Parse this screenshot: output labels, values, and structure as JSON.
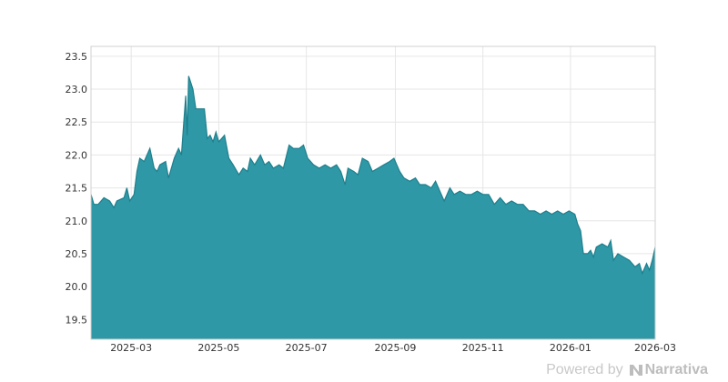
{
  "chart_data": {
    "type": "area",
    "title": "",
    "xlabel": "",
    "ylabel": "",
    "ylim": [
      19.2,
      23.65
    ],
    "xlim": [
      "2025-02-01",
      "2026-03-01"
    ],
    "grid": true,
    "colors": {
      "fill": "#2e98a6",
      "line": "#1f7f8c"
    },
    "y_ticks": [
      19.5,
      20.0,
      20.5,
      21.0,
      21.5,
      22.0,
      22.5,
      23.0,
      23.5
    ],
    "y_tick_labels": [
      "19.5",
      "20.0",
      "20.5",
      "21.0",
      "21.5",
      "22.0",
      "22.5",
      "23.0",
      "23.5"
    ],
    "x_ticks": [
      "2025-03-01",
      "2025-05-01",
      "2025-07-01",
      "2025-09-01",
      "2025-11-01",
      "2026-01-01",
      "2026-03-01"
    ],
    "x_tick_labels": [
      "2025-03",
      "2025-05",
      "2025-07",
      "2025-09",
      "2025-11",
      "2026-01",
      "2026-03"
    ],
    "series": [
      {
        "points": [
          [
            "2025-02-01",
            21.4
          ],
          [
            "2025-02-03",
            21.25
          ],
          [
            "2025-02-06",
            21.25
          ],
          [
            "2025-02-10",
            21.35
          ],
          [
            "2025-02-14",
            21.3
          ],
          [
            "2025-02-17",
            21.2
          ],
          [
            "2025-02-19",
            21.3
          ],
          [
            "2025-02-24",
            21.35
          ],
          [
            "2025-02-26",
            21.5
          ],
          [
            "2025-02-28",
            21.3
          ],
          [
            "2025-03-03",
            21.4
          ],
          [
            "2025-03-05",
            21.75
          ],
          [
            "2025-03-07",
            21.95
          ],
          [
            "2025-03-10",
            21.9
          ],
          [
            "2025-03-14",
            22.1
          ],
          [
            "2025-03-17",
            21.8
          ],
          [
            "2025-03-19",
            21.75
          ],
          [
            "2025-03-21",
            21.85
          ],
          [
            "2025-03-25",
            21.9
          ],
          [
            "2025-03-27",
            21.65
          ],
          [
            "2025-03-31",
            21.95
          ],
          [
            "2025-04-03",
            22.1
          ],
          [
            "2025-04-05",
            22.0
          ],
          [
            "2025-04-07",
            22.6
          ],
          [
            "2025-04-08",
            22.9
          ],
          [
            "2025-04-09",
            22.3
          ],
          [
            "2025-04-10",
            23.2
          ],
          [
            "2025-04-13",
            23.0
          ],
          [
            "2025-04-15",
            22.7
          ],
          [
            "2025-04-21",
            22.7
          ],
          [
            "2025-04-23",
            22.25
          ],
          [
            "2025-04-25",
            22.3
          ],
          [
            "2025-04-27",
            22.2
          ],
          [
            "2025-04-29",
            22.35
          ],
          [
            "2025-05-01",
            22.2
          ],
          [
            "2025-05-05",
            22.3
          ],
          [
            "2025-05-08",
            21.95
          ],
          [
            "2025-05-11",
            21.85
          ],
          [
            "2025-05-15",
            21.7
          ],
          [
            "2025-05-18",
            21.8
          ],
          [
            "2025-05-21",
            21.75
          ],
          [
            "2025-05-23",
            21.95
          ],
          [
            "2025-05-26",
            21.85
          ],
          [
            "2025-05-30",
            22.0
          ],
          [
            "2025-06-02",
            21.85
          ],
          [
            "2025-06-05",
            21.9
          ],
          [
            "2025-06-08",
            21.8
          ],
          [
            "2025-06-12",
            21.85
          ],
          [
            "2025-06-15",
            21.8
          ],
          [
            "2025-06-19",
            22.15
          ],
          [
            "2025-06-22",
            22.1
          ],
          [
            "2025-06-26",
            22.1
          ],
          [
            "2025-06-29",
            22.15
          ],
          [
            "2025-07-02",
            21.95
          ],
          [
            "2025-07-06",
            21.85
          ],
          [
            "2025-07-10",
            21.8
          ],
          [
            "2025-07-14",
            21.85
          ],
          [
            "2025-07-18",
            21.8
          ],
          [
            "2025-07-22",
            21.85
          ],
          [
            "2025-07-25",
            21.75
          ],
          [
            "2025-07-28",
            21.55
          ],
          [
            "2025-07-30",
            21.8
          ],
          [
            "2025-08-03",
            21.75
          ],
          [
            "2025-08-06",
            21.7
          ],
          [
            "2025-08-09",
            21.95
          ],
          [
            "2025-08-13",
            21.9
          ],
          [
            "2025-08-16",
            21.75
          ],
          [
            "2025-08-20",
            21.8
          ],
          [
            "2025-08-24",
            21.85
          ],
          [
            "2025-08-28",
            21.9
          ],
          [
            "2025-08-31",
            21.95
          ],
          [
            "2025-09-04",
            21.75
          ],
          [
            "2025-09-07",
            21.65
          ],
          [
            "2025-09-11",
            21.6
          ],
          [
            "2025-09-15",
            21.65
          ],
          [
            "2025-09-18",
            21.55
          ],
          [
            "2025-09-22",
            21.55
          ],
          [
            "2025-09-26",
            21.5
          ],
          [
            "2025-09-29",
            21.6
          ],
          [
            "2025-10-02",
            21.45
          ],
          [
            "2025-10-05",
            21.3
          ],
          [
            "2025-10-09",
            21.5
          ],
          [
            "2025-10-12",
            21.4
          ],
          [
            "2025-10-16",
            21.45
          ],
          [
            "2025-10-20",
            21.4
          ],
          [
            "2025-10-24",
            21.4
          ],
          [
            "2025-10-28",
            21.45
          ],
          [
            "2025-11-01",
            21.4
          ],
          [
            "2025-11-05",
            21.4
          ],
          [
            "2025-11-09",
            21.25
          ],
          [
            "2025-11-13",
            21.35
          ],
          [
            "2025-11-17",
            21.25
          ],
          [
            "2025-11-21",
            21.3
          ],
          [
            "2025-11-25",
            21.25
          ],
          [
            "2025-11-29",
            21.25
          ],
          [
            "2025-12-03",
            21.15
          ],
          [
            "2025-12-07",
            21.15
          ],
          [
            "2025-12-11",
            21.1
          ],
          [
            "2025-12-15",
            21.15
          ],
          [
            "2025-12-19",
            21.1
          ],
          [
            "2025-12-23",
            21.15
          ],
          [
            "2025-12-27",
            21.1
          ],
          [
            "2025-12-31",
            21.15
          ],
          [
            "2026-01-04",
            21.1
          ],
          [
            "2026-01-06",
            20.95
          ],
          [
            "2026-01-08",
            20.85
          ],
          [
            "2026-01-10",
            20.5
          ],
          [
            "2026-01-13",
            20.5
          ],
          [
            "2026-01-15",
            20.55
          ],
          [
            "2026-01-17",
            20.45
          ],
          [
            "2026-01-19",
            20.6
          ],
          [
            "2026-01-23",
            20.65
          ],
          [
            "2026-01-27",
            20.6
          ],
          [
            "2026-01-29",
            20.7
          ],
          [
            "2026-01-31",
            20.4
          ],
          [
            "2026-02-03",
            20.5
          ],
          [
            "2026-02-07",
            20.45
          ],
          [
            "2026-02-11",
            20.4
          ],
          [
            "2026-02-15",
            20.3
          ],
          [
            "2026-02-18",
            20.35
          ],
          [
            "2026-02-20",
            20.2
          ],
          [
            "2026-02-23",
            20.35
          ],
          [
            "2026-02-25",
            20.25
          ],
          [
            "2026-02-27",
            20.4
          ],
          [
            "2026-03-01",
            20.6
          ]
        ]
      }
    ]
  },
  "watermark": {
    "prefix": "Powered by",
    "brand": "Narrativa",
    "icon": "narrativa-logo-icon"
  }
}
